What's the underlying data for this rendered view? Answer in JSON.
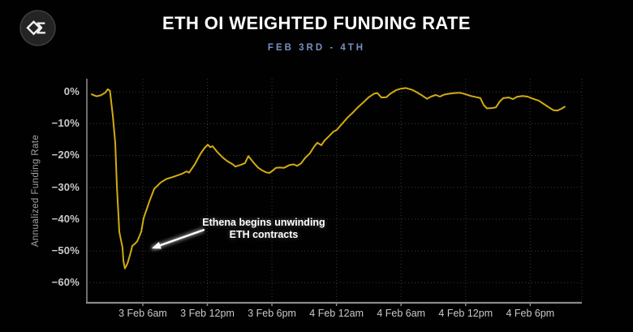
{
  "logo": {
    "icon": "sigma-diamond-logo",
    "glyph": "Σ"
  },
  "header": {
    "subtitle_color": "#7591c4"
  },
  "chart_data": {
    "type": "line",
    "title": "ETH OI WEIGHTED FUNDING RATE",
    "subtitle": "FEB 3RD - 4TH",
    "xlabel": "",
    "ylabel": "Annualized Funding Rate",
    "grid": true,
    "legend": "none",
    "line_color": "#d2ac10",
    "axis_color": "#8a8a8a",
    "grid_color": "#3a3a3a",
    "tick_label_color": "#c9c9c9",
    "ylim": [
      -66.3,
      4.1
    ],
    "xlim_hours": [
      0.8,
      46.8
    ],
    "ytick_values": [
      0,
      -10,
      -20,
      -30,
      -40,
      -50,
      -60
    ],
    "ytick_labels": [
      "0%",
      "−10%",
      "−20%",
      "−30%",
      "−40%",
      "−50%",
      "−60%"
    ],
    "xtick_hours": [
      6,
      12,
      18,
      24,
      30,
      36,
      42
    ],
    "xtick_labels": [
      "3 Feb 6am",
      "3 Feb 12pm",
      "3 Feb 6pm",
      "4 Feb 12am",
      "4 Feb 6am",
      "4 Feb 12pm",
      "4 Feb 6pm"
    ],
    "x_unit": "hours since 3 Feb 12am",
    "series": [
      {
        "name": "ETH OI weighted funding rate (annualized %)",
        "points": [
          [
            1.25,
            -0.8
          ],
          [
            1.7,
            -1.4
          ],
          [
            2.1,
            -1.1
          ],
          [
            2.5,
            -0.3
          ],
          [
            2.75,
            0.8
          ],
          [
            2.95,
            0.3
          ],
          [
            3.21,
            -7.5
          ],
          [
            3.44,
            -16
          ],
          [
            3.59,
            -29.5
          ],
          [
            3.74,
            -39
          ],
          [
            3.82,
            -44
          ],
          [
            3.97,
            -46.5
          ],
          [
            4.12,
            -49
          ],
          [
            4.19,
            -53
          ],
          [
            4.34,
            -55.5
          ],
          [
            4.57,
            -54
          ],
          [
            4.87,
            -50.5
          ],
          [
            5.02,
            -48.4
          ],
          [
            5.25,
            -47.8
          ],
          [
            5.48,
            -47
          ],
          [
            5.85,
            -44
          ],
          [
            6.08,
            -39.7
          ],
          [
            6.38,
            -36.7
          ],
          [
            6.61,
            -34.5
          ],
          [
            7.06,
            -30.5
          ],
          [
            7.66,
            -28.5
          ],
          [
            8.19,
            -27.4
          ],
          [
            8.79,
            -26.8
          ],
          [
            9.62,
            -25.8
          ],
          [
            10.07,
            -25.0
          ],
          [
            10.3,
            -25.4
          ],
          [
            10.83,
            -22.8
          ],
          [
            11.36,
            -19.5
          ],
          [
            11.73,
            -17.7
          ],
          [
            12.04,
            -16.6
          ],
          [
            12.26,
            -17.4
          ],
          [
            12.49,
            -17.1
          ],
          [
            12.94,
            -19.0
          ],
          [
            13.47,
            -20.8
          ],
          [
            13.85,
            -21.8
          ],
          [
            14.37,
            -22.8
          ],
          [
            14.6,
            -23.5
          ],
          [
            15.13,
            -22.9
          ],
          [
            15.5,
            -22.4
          ],
          [
            15.81,
            -20.2
          ],
          [
            16.33,
            -22.4
          ],
          [
            16.71,
            -23.8
          ],
          [
            17.09,
            -24.7
          ],
          [
            17.46,
            -25.3
          ],
          [
            17.77,
            -25.5
          ],
          [
            18.14,
            -24.6
          ],
          [
            18.37,
            -23.9
          ],
          [
            18.75,
            -23.8
          ],
          [
            19.12,
            -23.9
          ],
          [
            19.65,
            -23.0
          ],
          [
            20.03,
            -22.8
          ],
          [
            20.33,
            -23.3
          ],
          [
            20.71,
            -22.5
          ],
          [
            21.08,
            -20.8
          ],
          [
            21.54,
            -19.3
          ],
          [
            21.91,
            -17.3
          ],
          [
            22.22,
            -16.0
          ],
          [
            22.59,
            -16.8
          ],
          [
            22.89,
            -15.3
          ],
          [
            23.35,
            -13.8
          ],
          [
            23.72,
            -12.5
          ],
          [
            24.02,
            -12.0
          ],
          [
            24.48,
            -10.2
          ],
          [
            25.0,
            -8.2
          ],
          [
            25.53,
            -6.5
          ],
          [
            25.98,
            -4.9
          ],
          [
            26.51,
            -3.3
          ],
          [
            26.97,
            -1.8
          ],
          [
            27.49,
            -0.6
          ],
          [
            27.8,
            -0.4
          ],
          [
            28.17,
            -1.8
          ],
          [
            28.63,
            -1.7
          ],
          [
            29.0,
            -0.6
          ],
          [
            29.53,
            0.5
          ],
          [
            29.99,
            1.0
          ],
          [
            30.44,
            1.2
          ],
          [
            31.04,
            0.6
          ],
          [
            31.49,
            -0.2
          ],
          [
            32.02,
            -1.3
          ],
          [
            32.4,
            -2.2
          ],
          [
            32.78,
            -1.5
          ],
          [
            33.23,
            -1.0
          ],
          [
            33.61,
            -1.5
          ],
          [
            33.98,
            -0.9
          ],
          [
            34.51,
            -0.6
          ],
          [
            34.96,
            -0.4
          ],
          [
            35.49,
            -0.3
          ],
          [
            36.02,
            -0.8
          ],
          [
            36.47,
            -1.3
          ],
          [
            37.0,
            -1.7
          ],
          [
            37.37,
            -2.0
          ],
          [
            37.68,
            -4.2
          ],
          [
            37.98,
            -5.2
          ],
          [
            38.43,
            -5.1
          ],
          [
            38.81,
            -4.9
          ],
          [
            39.18,
            -3.0
          ],
          [
            39.49,
            -2.0
          ],
          [
            40.01,
            -1.8
          ],
          [
            40.39,
            -2.3
          ],
          [
            40.77,
            -1.6
          ],
          [
            41.29,
            -1.3
          ],
          [
            41.75,
            -1.5
          ],
          [
            42.27,
            -2.2
          ],
          [
            42.8,
            -2.8
          ],
          [
            43.25,
            -3.8
          ],
          [
            43.78,
            -5.0
          ],
          [
            44.16,
            -5.8
          ],
          [
            44.53,
            -5.9
          ],
          [
            44.91,
            -5.3
          ],
          [
            45.21,
            -4.7
          ]
        ]
      }
    ],
    "annotation": {
      "line1": "Ethena begins unwinding",
      "line2": "ETH contracts",
      "text_anchor_hour": 17.24,
      "text_anchor_value": -43.4,
      "arrow_from_hour": 11.66,
      "arrow_from_value": -43.4,
      "arrow_to_hour": 6.83,
      "arrow_to_value": -49.2
    }
  }
}
